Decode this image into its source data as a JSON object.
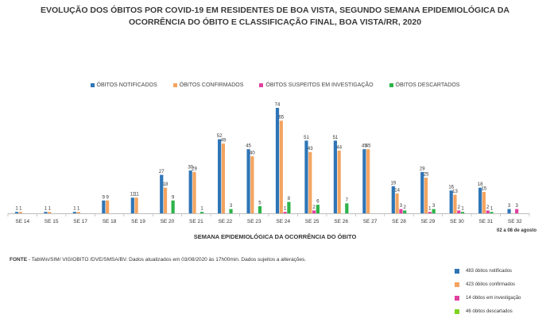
{
  "title_line1": "EVOLUÇÃO DOS ÓBITOS POR COVID-19 EM RESIDENTES DE BOA VISTA, SEGUNDO SEMANA EPIDEMIOLÓGICA DA",
  "title_line2": "OCORRÊNCIA DO ÓBITO E CLASSIFICAÇÃO FINAL, BOA VISTA/RR, 2020",
  "x_axis_title": "SEMANA EPIDEMIOLÓGICA DA OCORRÊNCIA DO ÓBITO",
  "period_note": "02 a 08 de agosto",
  "source_label": "FONTE",
  "source_text": " - TabWin/SIM/ VIGIOBITO /DVE/SMSA/BV.  Dados atualizados em 03/08/2020 às 17h00min. Dados sujeitos a alterações.",
  "totals": [
    {
      "text": "483 óbitos notificados",
      "color": "#2e75b6"
    },
    {
      "text": "423 óbitos confirmados",
      "color": "#f4a460"
    },
    {
      "text": "14 óbitos em investigação",
      "color": "#e040a0"
    },
    {
      "text": "46 óbitos descartados",
      "color": "#7ed321"
    }
  ],
  "chart_data": {
    "type": "bar",
    "title": "EVOLUÇÃO DOS ÓBITOS POR COVID-19 EM RESIDENTES DE BOA VISTA, SEGUNDO SEMANA EPIDEMIOLÓGICA DA OCORRÊNCIA DO ÓBITO E CLASSIFICAÇÃO FINAL, BOA VISTA/RR, 2020",
    "xlabel": "SEMANA EPIDEMIOLÓGICA DA OCORRÊNCIA DO ÓBITO",
    "ylabel": "",
    "ylim": [
      0,
      74
    ],
    "categories": [
      "SE 14",
      "SE 15",
      "SE 17",
      "SE 18",
      "SE 19",
      "SE 20",
      "SE 21",
      "SE 22",
      "SE 23",
      "SE 24",
      "SE 25",
      "SE 26",
      "SE 27",
      "SE 28",
      "SE 29",
      "SE 30",
      "SE 31",
      "SE 32"
    ],
    "series": [
      {
        "name": "ÓBITOS NOTIFICADOS",
        "color": "#2e75b6",
        "values": [
          1,
          1,
          1,
          9,
          11,
          27,
          30,
          52,
          45,
          74,
          51,
          51,
          45,
          19,
          29,
          16,
          18,
          null
        ]
      },
      {
        "name": "ÓBITOS CONFIRMADOS",
        "color": "#f4a460",
        "values": [
          1,
          1,
          1,
          9,
          11,
          18,
          29,
          49,
          40,
          65,
          43,
          44,
          45,
          14,
          25,
          13,
          15,
          null
        ]
      },
      {
        "name": "ÓBITOS SUSPEITOS EM INVESTIGAÇÃO",
        "color": "#e040a0",
        "values": [
          null,
          null,
          null,
          null,
          null,
          null,
          null,
          null,
          null,
          null,
          null,
          null,
          null,
          3,
          null,
          null,
          2,
          3
        ]
      },
      {
        "name": "ÓBITOS DESCARTADOS",
        "color": "#2db34a",
        "values": [
          null,
          null,
          null,
          null,
          null,
          9,
          1,
          3,
          5,
          8,
          6,
          7,
          null,
          2,
          3,
          1,
          1,
          null
        ]
      }
    ],
    "special_points": [
      {
        "category": "SE 24",
        "series": "ÓBITOS SUSPEITOS EM INVESTIGAÇÃO",
        "value": 1
      },
      {
        "category": "SE 25",
        "series": "ÓBITOS SUSPEITOS EM INVESTIGAÇÃO",
        "value": 2
      },
      {
        "category": "SE 29",
        "series": "ÓBITOS SUSPEITOS EM INVESTIGAÇÃO",
        "value": 1
      },
      {
        "category": "SE 30",
        "series": "ÓBITOS SUSPEITOS EM INVESTIGAÇÃO",
        "value": 2
      },
      {
        "category": "SE 32",
        "series": "ÓBITOS NOTIFICADOS",
        "value": 3
      }
    ],
    "legend_position": "top-center",
    "grid": false
  }
}
